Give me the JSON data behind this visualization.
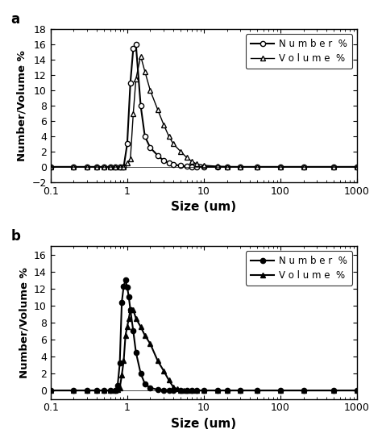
{
  "panel_a": {
    "label": "a",
    "number_x": [
      0.1,
      0.2,
      0.3,
      0.4,
      0.5,
      0.6,
      0.7,
      0.8,
      0.9,
      1.0,
      1.1,
      1.2,
      1.3,
      1.5,
      1.7,
      2.0,
      2.5,
      3.0,
      3.5,
      4.0,
      5.0,
      6.0,
      7.0,
      8.0,
      10.0,
      15.0,
      20.0,
      30.0,
      50.0,
      100.0,
      200.0,
      500.0,
      1000.0
    ],
    "number_y": [
      0.0,
      0.0,
      0.0,
      0.0,
      0.0,
      0.0,
      0.0,
      0.0,
      0.0,
      3.0,
      11.0,
      15.5,
      16.0,
      8.0,
      4.0,
      2.5,
      1.5,
      0.8,
      0.5,
      0.3,
      0.15,
      0.05,
      0.02,
      0.01,
      0.0,
      0.0,
      0.0,
      0.0,
      0.0,
      0.0,
      0.0,
      0.0,
      0.0
    ],
    "volume_x": [
      0.1,
      0.2,
      0.3,
      0.4,
      0.5,
      0.6,
      0.7,
      0.8,
      0.9,
      1.0,
      1.1,
      1.2,
      1.3,
      1.5,
      1.7,
      2.0,
      2.5,
      3.0,
      3.5,
      4.0,
      5.0,
      6.0,
      7.0,
      8.0,
      10.0,
      15.0,
      20.0,
      30.0,
      50.0,
      100.0,
      200.0,
      500.0,
      1000.0
    ],
    "volume_y": [
      0.0,
      0.0,
      0.0,
      0.0,
      0.0,
      0.0,
      0.0,
      0.0,
      0.0,
      0.5,
      1.0,
      7.0,
      11.5,
      14.5,
      12.5,
      10.0,
      7.5,
      5.5,
      4.0,
      3.0,
      2.0,
      1.2,
      0.7,
      0.4,
      0.2,
      0.08,
      0.03,
      0.01,
      0.0,
      0.0,
      0.0,
      0.0,
      0.0
    ],
    "ylim": [
      -2,
      18
    ],
    "yticks": [
      -2,
      0,
      2,
      4,
      6,
      8,
      10,
      12,
      14,
      16,
      18
    ],
    "ylabel": "Number/Volume %",
    "xlabel": "Size (um)"
  },
  "panel_b": {
    "label": "b",
    "number_x": [
      0.1,
      0.2,
      0.3,
      0.4,
      0.5,
      0.6,
      0.7,
      0.75,
      0.8,
      0.85,
      0.9,
      0.95,
      1.0,
      1.05,
      1.1,
      1.2,
      1.3,
      1.5,
      1.7,
      2.0,
      2.5,
      3.0,
      3.5,
      4.0,
      5.0,
      6.0,
      7.0,
      8.0,
      10.0,
      15.0,
      20.0,
      30.0,
      50.0,
      100.0,
      200.0,
      500.0,
      1000.0
    ],
    "number_y": [
      0.0,
      0.0,
      0.0,
      0.0,
      0.0,
      0.0,
      0.0,
      0.6,
      3.2,
      10.4,
      12.3,
      13.0,
      12.2,
      11.0,
      9.5,
      7.0,
      4.5,
      2.0,
      0.8,
      0.3,
      0.1,
      0.02,
      0.01,
      0.0,
      0.0,
      0.0,
      0.0,
      0.0,
      0.0,
      0.0,
      0.0,
      0.0,
      0.0,
      0.0,
      0.0,
      0.0,
      0.0
    ],
    "volume_x": [
      0.1,
      0.2,
      0.3,
      0.4,
      0.5,
      0.6,
      0.7,
      0.75,
      0.8,
      0.85,
      0.9,
      0.95,
      1.0,
      1.05,
      1.1,
      1.2,
      1.3,
      1.5,
      1.7,
      2.0,
      2.5,
      3.0,
      3.5,
      4.0,
      4.5,
      5.0,
      5.5,
      6.0,
      7.0,
      8.0,
      10.0,
      15.0,
      20.0,
      30.0,
      50.0,
      100.0,
      200.0,
      500.0,
      1000.0
    ],
    "volume_y": [
      0.0,
      0.0,
      0.0,
      0.0,
      0.0,
      0.0,
      0.0,
      0.1,
      0.3,
      1.8,
      3.5,
      6.5,
      7.5,
      8.5,
      9.5,
      9.5,
      8.5,
      7.5,
      6.5,
      5.5,
      3.5,
      2.3,
      1.2,
      0.4,
      0.15,
      0.05,
      0.02,
      0.01,
      0.0,
      0.0,
      0.0,
      0.0,
      0.0,
      0.0,
      0.0,
      0.0,
      0.0,
      0.0,
      0.0
    ],
    "ylim": [
      -1,
      17
    ],
    "yticks": [
      0,
      2,
      4,
      6,
      8,
      10,
      12,
      14,
      16
    ],
    "ylabel": "Number/Volume %",
    "xlabel": "Size (um)"
  },
  "number_label": "N u m b e r  %",
  "volume_label": "V o l u m e  %",
  "bg_color": "#ffffff"
}
